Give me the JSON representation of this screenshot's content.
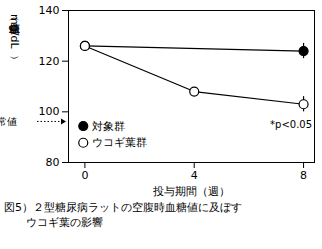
{
  "chart_data": {
    "type": "line",
    "caption": [
      "図5）２型糖尿病ラットの空腹時血糖値に及ぼす",
      "ウコギ葉の影響"
    ],
    "xlabel": "投与期間（週）",
    "ylabel": "血糖値（mg/dL）",
    "xlim": [
      -0.6,
      8.4
    ],
    "xticks": [
      0,
      4,
      8
    ],
    "ylim": [
      80,
      140
    ],
    "yticks": [
      80,
      100,
      120,
      140
    ],
    "series": [
      {
        "name": "対象群",
        "color": "#000000",
        "marker": "filled",
        "x": [
          0,
          8
        ],
        "values": [
          126,
          124
        ],
        "errors": [
          1,
          3
        ]
      },
      {
        "name": "ウコギ葉群",
        "color": "#000000",
        "marker": "open",
        "x": [
          0,
          4,
          8
        ],
        "values": [
          126,
          108,
          103
        ],
        "errors": [
          1,
          null,
          3
        ]
      }
    ],
    "annotation": "*p<0.05",
    "reference": {
      "label": "正常値",
      "y": 96
    },
    "legend": "bottom-left"
  }
}
